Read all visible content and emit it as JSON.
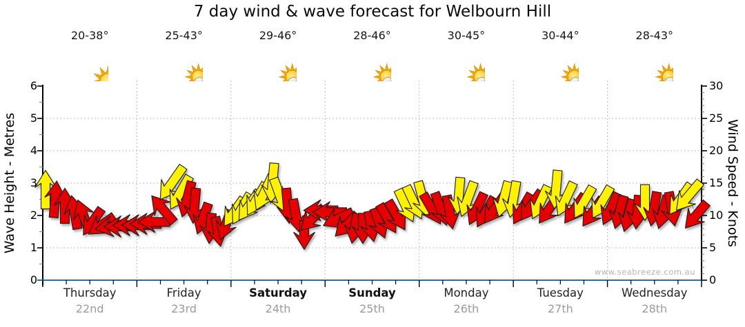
{
  "title": "7 day wind & wave forecast for Welbourn Hill",
  "watermark": "www.seabreeze.com.au",
  "colors": {
    "arrow_red": "#E60000",
    "arrow_yellow": "#FFF200",
    "arrow_outline": "#1a1a1a",
    "x_axis_line": "#2F6C99",
    "grid_dotted": "#bcbcbc",
    "minor_tick": "#888888",
    "date_gray": "#9a9a9a",
    "connector_gray": "#aaaaaa"
  },
  "chart_data": {
    "type": "wind-vector-forecast",
    "y_left": {
      "label": "Wave Height - Metres",
      "min": 0,
      "max": 6,
      "ticks": [
        0,
        1,
        2,
        3,
        4,
        5,
        6
      ]
    },
    "y_right": {
      "label": "Wind Speed - Knots",
      "min": 0,
      "max": 30,
      "ticks": [
        0,
        5,
        10,
        15,
        20,
        25,
        30
      ]
    },
    "grid": {
      "horizontal_dotted_at_metres": [
        1,
        2,
        3,
        4,
        5
      ],
      "vertical_dotted_at_day_boundaries": true
    },
    "x": {
      "days": [
        {
          "name": "Thursday",
          "date": "22nd",
          "temp": "20-38°",
          "icon": "sun",
          "weekend": false
        },
        {
          "name": "Friday",
          "date": "23rd",
          "temp": "25-43°",
          "icon": "sun-cloud",
          "weekend": false
        },
        {
          "name": "Saturday",
          "date": "24th",
          "temp": "29-46°",
          "icon": "sun-cloud",
          "weekend": true
        },
        {
          "name": "Sunday",
          "date": "25th",
          "temp": "28-46°",
          "icon": "sun-cloud",
          "weekend": true
        },
        {
          "name": "Monday",
          "date": "26th",
          "temp": "30-45°",
          "icon": "sun-cloud",
          "weekend": false
        },
        {
          "name": "Tuesday",
          "date": "27th",
          "temp": "30-44°",
          "icon": "sun-cloud",
          "weekend": false
        },
        {
          "name": "Wednesday",
          "date": "28th",
          "temp": "28-43°",
          "icon": "sun-cloud",
          "weekend": false
        }
      ]
    },
    "arrow_format": [
      "x_px",
      "knots",
      "direction_deg_pointing_to",
      "color"
    ],
    "arrows": [
      [
        66,
        14,
        0,
        "y"
      ],
      [
        80,
        12.5,
        5,
        "r"
      ],
      [
        94,
        11.5,
        0,
        "r"
      ],
      [
        108,
        10.5,
        350,
        "r"
      ],
      [
        121,
        10,
        340,
        "r"
      ],
      [
        134,
        9,
        215,
        "r"
      ],
      [
        147,
        8.5,
        235,
        "r"
      ],
      [
        160,
        8.3,
        260,
        "r"
      ],
      [
        173,
        8.3,
        270,
        "r"
      ],
      [
        186,
        8.5,
        270,
        "r"
      ],
      [
        199,
        8.5,
        270,
        "r"
      ],
      [
        211,
        8.7,
        270,
        "r"
      ],
      [
        223,
        9,
        270,
        "r"
      ],
      [
        236,
        11,
        320,
        "r"
      ],
      [
        249,
        15,
        215,
        "y"
      ],
      [
        261,
        13.5,
        210,
        "y"
      ],
      [
        271,
        12.5,
        195,
        "r"
      ],
      [
        282,
        11.5,
        185,
        "r"
      ],
      [
        294,
        9.5,
        200,
        "r"
      ],
      [
        305,
        8,
        185,
        "r"
      ],
      [
        316,
        7.5,
        170,
        "r"
      ],
      [
        327,
        8.5,
        200,
        "r"
      ],
      [
        339,
        10.5,
        215,
        "y"
      ],
      [
        350,
        11,
        210,
        "y"
      ],
      [
        361,
        11.5,
        215,
        "y"
      ],
      [
        372,
        12.5,
        210,
        "y"
      ],
      [
        383,
        13.5,
        205,
        "y"
      ],
      [
        395,
        15,
        185,
        "y"
      ],
      [
        406,
        13,
        160,
        "y"
      ],
      [
        417,
        11.5,
        175,
        "r"
      ],
      [
        429,
        10,
        170,
        "r"
      ],
      [
        441,
        7,
        180,
        "r"
      ],
      [
        453,
        9.5,
        225,
        "r"
      ],
      [
        465,
        10.8,
        270,
        "r"
      ],
      [
        478,
        10.5,
        270,
        "r"
      ],
      [
        490,
        9.5,
        245,
        "r"
      ],
      [
        502,
        8.5,
        225,
        "r"
      ],
      [
        514,
        8,
        190,
        "r"
      ],
      [
        526,
        8,
        180,
        "r"
      ],
      [
        538,
        8.3,
        170,
        "r"
      ],
      [
        550,
        8.8,
        160,
        "r"
      ],
      [
        562,
        9.5,
        150,
        "r"
      ],
      [
        575,
        10,
        150,
        "r"
      ],
      [
        588,
        11.5,
        155,
        "y"
      ],
      [
        600,
        12,
        155,
        "y"
      ],
      [
        613,
        12.5,
        165,
        "y"
      ],
      [
        626,
        11,
        150,
        "r"
      ],
      [
        639,
        11,
        160,
        "r"
      ],
      [
        652,
        10.5,
        170,
        "r"
      ],
      [
        665,
        13,
        185,
        "y"
      ],
      [
        678,
        12.5,
        200,
        "y"
      ],
      [
        691,
        11,
        205,
        "r"
      ],
      [
        704,
        10.5,
        210,
        "r"
      ],
      [
        717,
        11,
        215,
        "r"
      ],
      [
        730,
        12.5,
        195,
        "y"
      ],
      [
        744,
        12.5,
        190,
        "y"
      ],
      [
        757,
        11,
        210,
        "r"
      ],
      [
        770,
        11.5,
        215,
        "r"
      ],
      [
        783,
        12,
        205,
        "y"
      ],
      [
        796,
        11,
        215,
        "r"
      ],
      [
        806,
        14,
        185,
        "y"
      ],
      [
        820,
        12.5,
        205,
        "y"
      ],
      [
        833,
        11,
        215,
        "r"
      ],
      [
        846,
        12,
        210,
        "y"
      ],
      [
        859,
        10.5,
        215,
        "r"
      ],
      [
        872,
        12,
        210,
        "y"
      ],
      [
        885,
        11,
        205,
        "r"
      ],
      [
        898,
        10.5,
        195,
        "r"
      ],
      [
        911,
        10,
        195,
        "r"
      ],
      [
        924,
        10.5,
        185,
        "r"
      ],
      [
        935,
        12,
        180,
        "y"
      ],
      [
        948,
        11,
        190,
        "r"
      ],
      [
        961,
        10.5,
        195,
        "r"
      ],
      [
        974,
        11,
        170,
        "r"
      ],
      [
        986,
        12.5,
        215,
        "y"
      ],
      [
        998,
        13,
        220,
        "y"
      ],
      [
        1009,
        10,
        220,
        "r"
      ]
    ]
  }
}
